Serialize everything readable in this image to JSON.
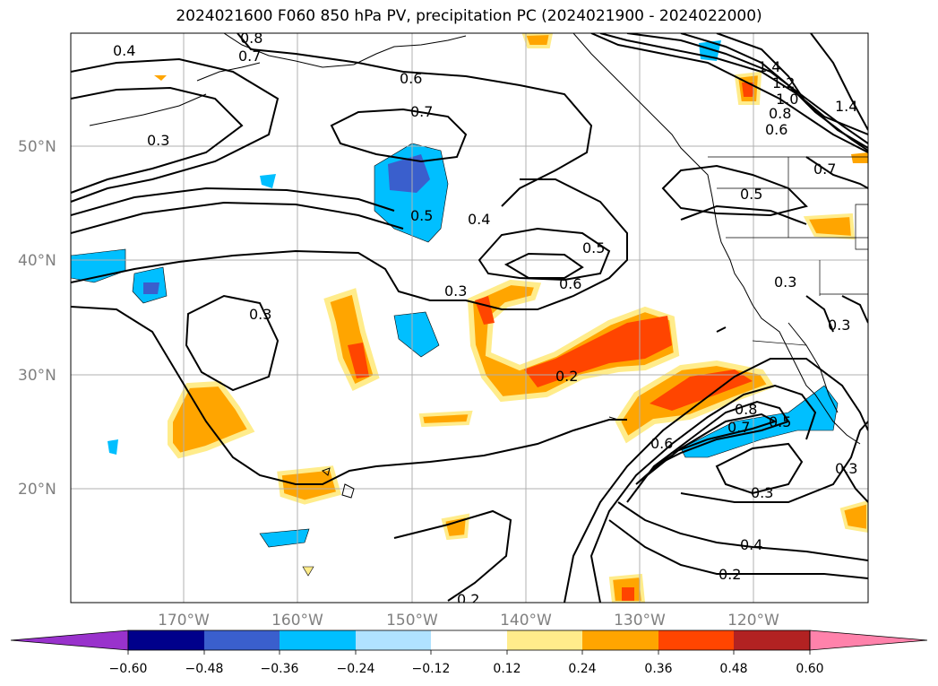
{
  "title": "2024021600 F060 850 hPa PV, precipitation PC (2024021900 - 2024022000)",
  "map": {
    "lat_labels": [
      "50°N",
      "40°N",
      "30°N",
      "20°N"
    ],
    "lon_labels": [
      "170°W",
      "160°W",
      "150°W",
      "140°W",
      "130°W",
      "120°W"
    ],
    "contour_labels": [
      "0.4",
      "0.8",
      "0.7",
      "0.3",
      "0.6",
      "0.7",
      "0.5",
      "0.4",
      "0.5",
      "0.6",
      "0.3",
      "0.3",
      "0.2",
      "1.4",
      "1.2",
      "1.0",
      "0.8",
      "0.6",
      "0.7",
      "1.4",
      "0.5",
      "0.3",
      "0.3",
      "0.8",
      "0.7",
      "0.5",
      "0.6",
      "0.3",
      "0.3",
      "0.4",
      "0.2",
      "0.2"
    ]
  },
  "colorbar": {
    "tick_labels": [
      "−0.60",
      "−0.48",
      "−0.36",
      "−0.24",
      "−0.12",
      "0.12",
      "0.24",
      "0.36",
      "0.48",
      "0.60"
    ],
    "colors": [
      "#9932cc",
      "#00008b",
      "#3a5fcd",
      "#00bfff",
      "#b0e2ff",
      "#ffffff",
      "#ffec8b",
      "#ffa500",
      "#ff4500",
      "#b22222",
      "#ff82ab"
    ]
  }
}
